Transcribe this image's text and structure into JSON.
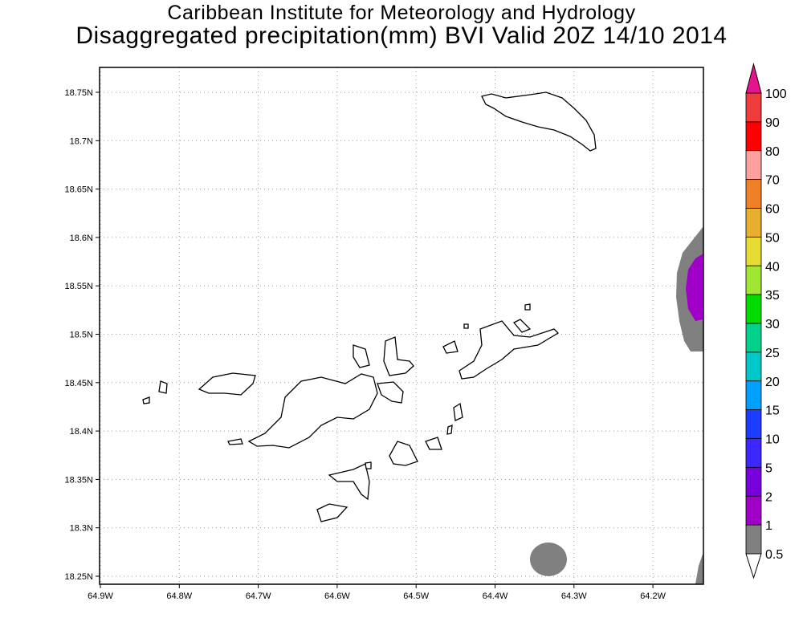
{
  "title": {
    "line1": "Caribbean Institute for Meteorology and Hydrology",
    "line2": "Disaggregated precipitation(mm) BVI Valid 20Z 14/10 2014"
  },
  "map": {
    "region": "BVI",
    "lon_ticks": [
      "64.9W",
      "64.8W",
      "64.7W",
      "64.6W",
      "64.5W",
      "64.4W",
      "64.3W",
      "64.2W"
    ],
    "lat_ticks": [
      "18.75N",
      "18.7N",
      "18.65N",
      "18.6N",
      "18.55N",
      "18.5N",
      "18.45N",
      "18.4N",
      "18.35N",
      "18.3N",
      "18.25N"
    ],
    "grid": "dotted"
  },
  "colorbar": {
    "labels": [
      "100",
      "90",
      "80",
      "70",
      "60",
      "50",
      "40",
      "35",
      "30",
      "25",
      "20",
      "15",
      "10",
      "5",
      "2",
      "1",
      "0.5"
    ],
    "top_arrow_color": "#e6148c",
    "bottom_arrow_color": "#ffffff",
    "colors": [
      "#f03c3c",
      "#ff0000",
      "#ffa0a0",
      "#f08028",
      "#e6af2d",
      "#e6dc32",
      "#a0e632",
      "#00dc00",
      "#00d28c",
      "#00c8c8",
      "#00a0ff",
      "#1e3cff",
      "#3c28ff",
      "#7800dc",
      "#a000c8",
      "#808080"
    ]
  }
}
